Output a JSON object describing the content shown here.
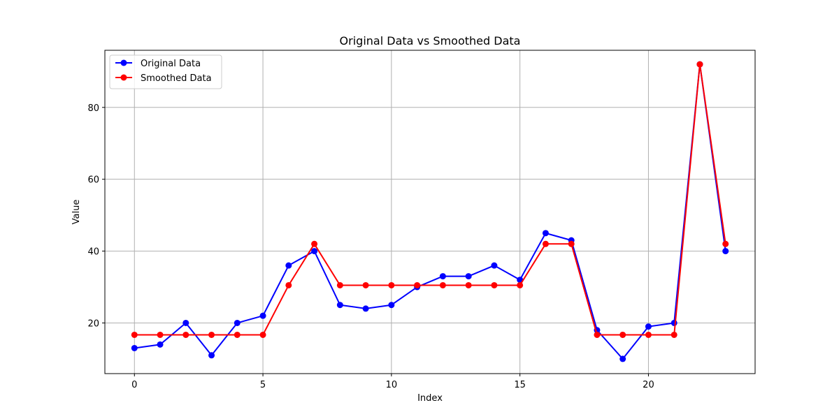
{
  "chart_data": {
    "type": "line",
    "title": "Original Data vs Smoothed Data",
    "xlabel": "Index",
    "ylabel": "Value",
    "xlim": [
      -1.15,
      24.15
    ],
    "ylim": [
      5.9,
      95.9
    ],
    "xticks": [
      0,
      5,
      10,
      15,
      20
    ],
    "yticks": [
      20,
      40,
      60,
      80
    ],
    "grid": true,
    "legend_position": "upper-left",
    "x": [
      0,
      1,
      2,
      3,
      4,
      5,
      6,
      7,
      8,
      9,
      10,
      11,
      12,
      13,
      14,
      15,
      16,
      17,
      18,
      19,
      20,
      21,
      22,
      23
    ],
    "series": [
      {
        "name": "Original Data",
        "color": "#0000ff",
        "marker": "circle",
        "values": [
          13,
          14,
          20,
          11,
          20,
          22,
          36,
          40,
          25,
          24,
          25,
          30,
          33,
          33,
          36,
          32,
          45,
          43,
          18,
          10,
          19,
          20,
          92,
          40
        ]
      },
      {
        "name": "Smoothed Data",
        "color": "#ff0000",
        "marker": "circle",
        "values": [
          16.7,
          16.7,
          16.7,
          16.7,
          16.7,
          16.7,
          30.5,
          42,
          30.5,
          30.5,
          30.5,
          30.5,
          30.5,
          30.5,
          30.5,
          30.5,
          42,
          42,
          16.7,
          16.7,
          16.7,
          16.7,
          92,
          42
        ]
      }
    ]
  }
}
